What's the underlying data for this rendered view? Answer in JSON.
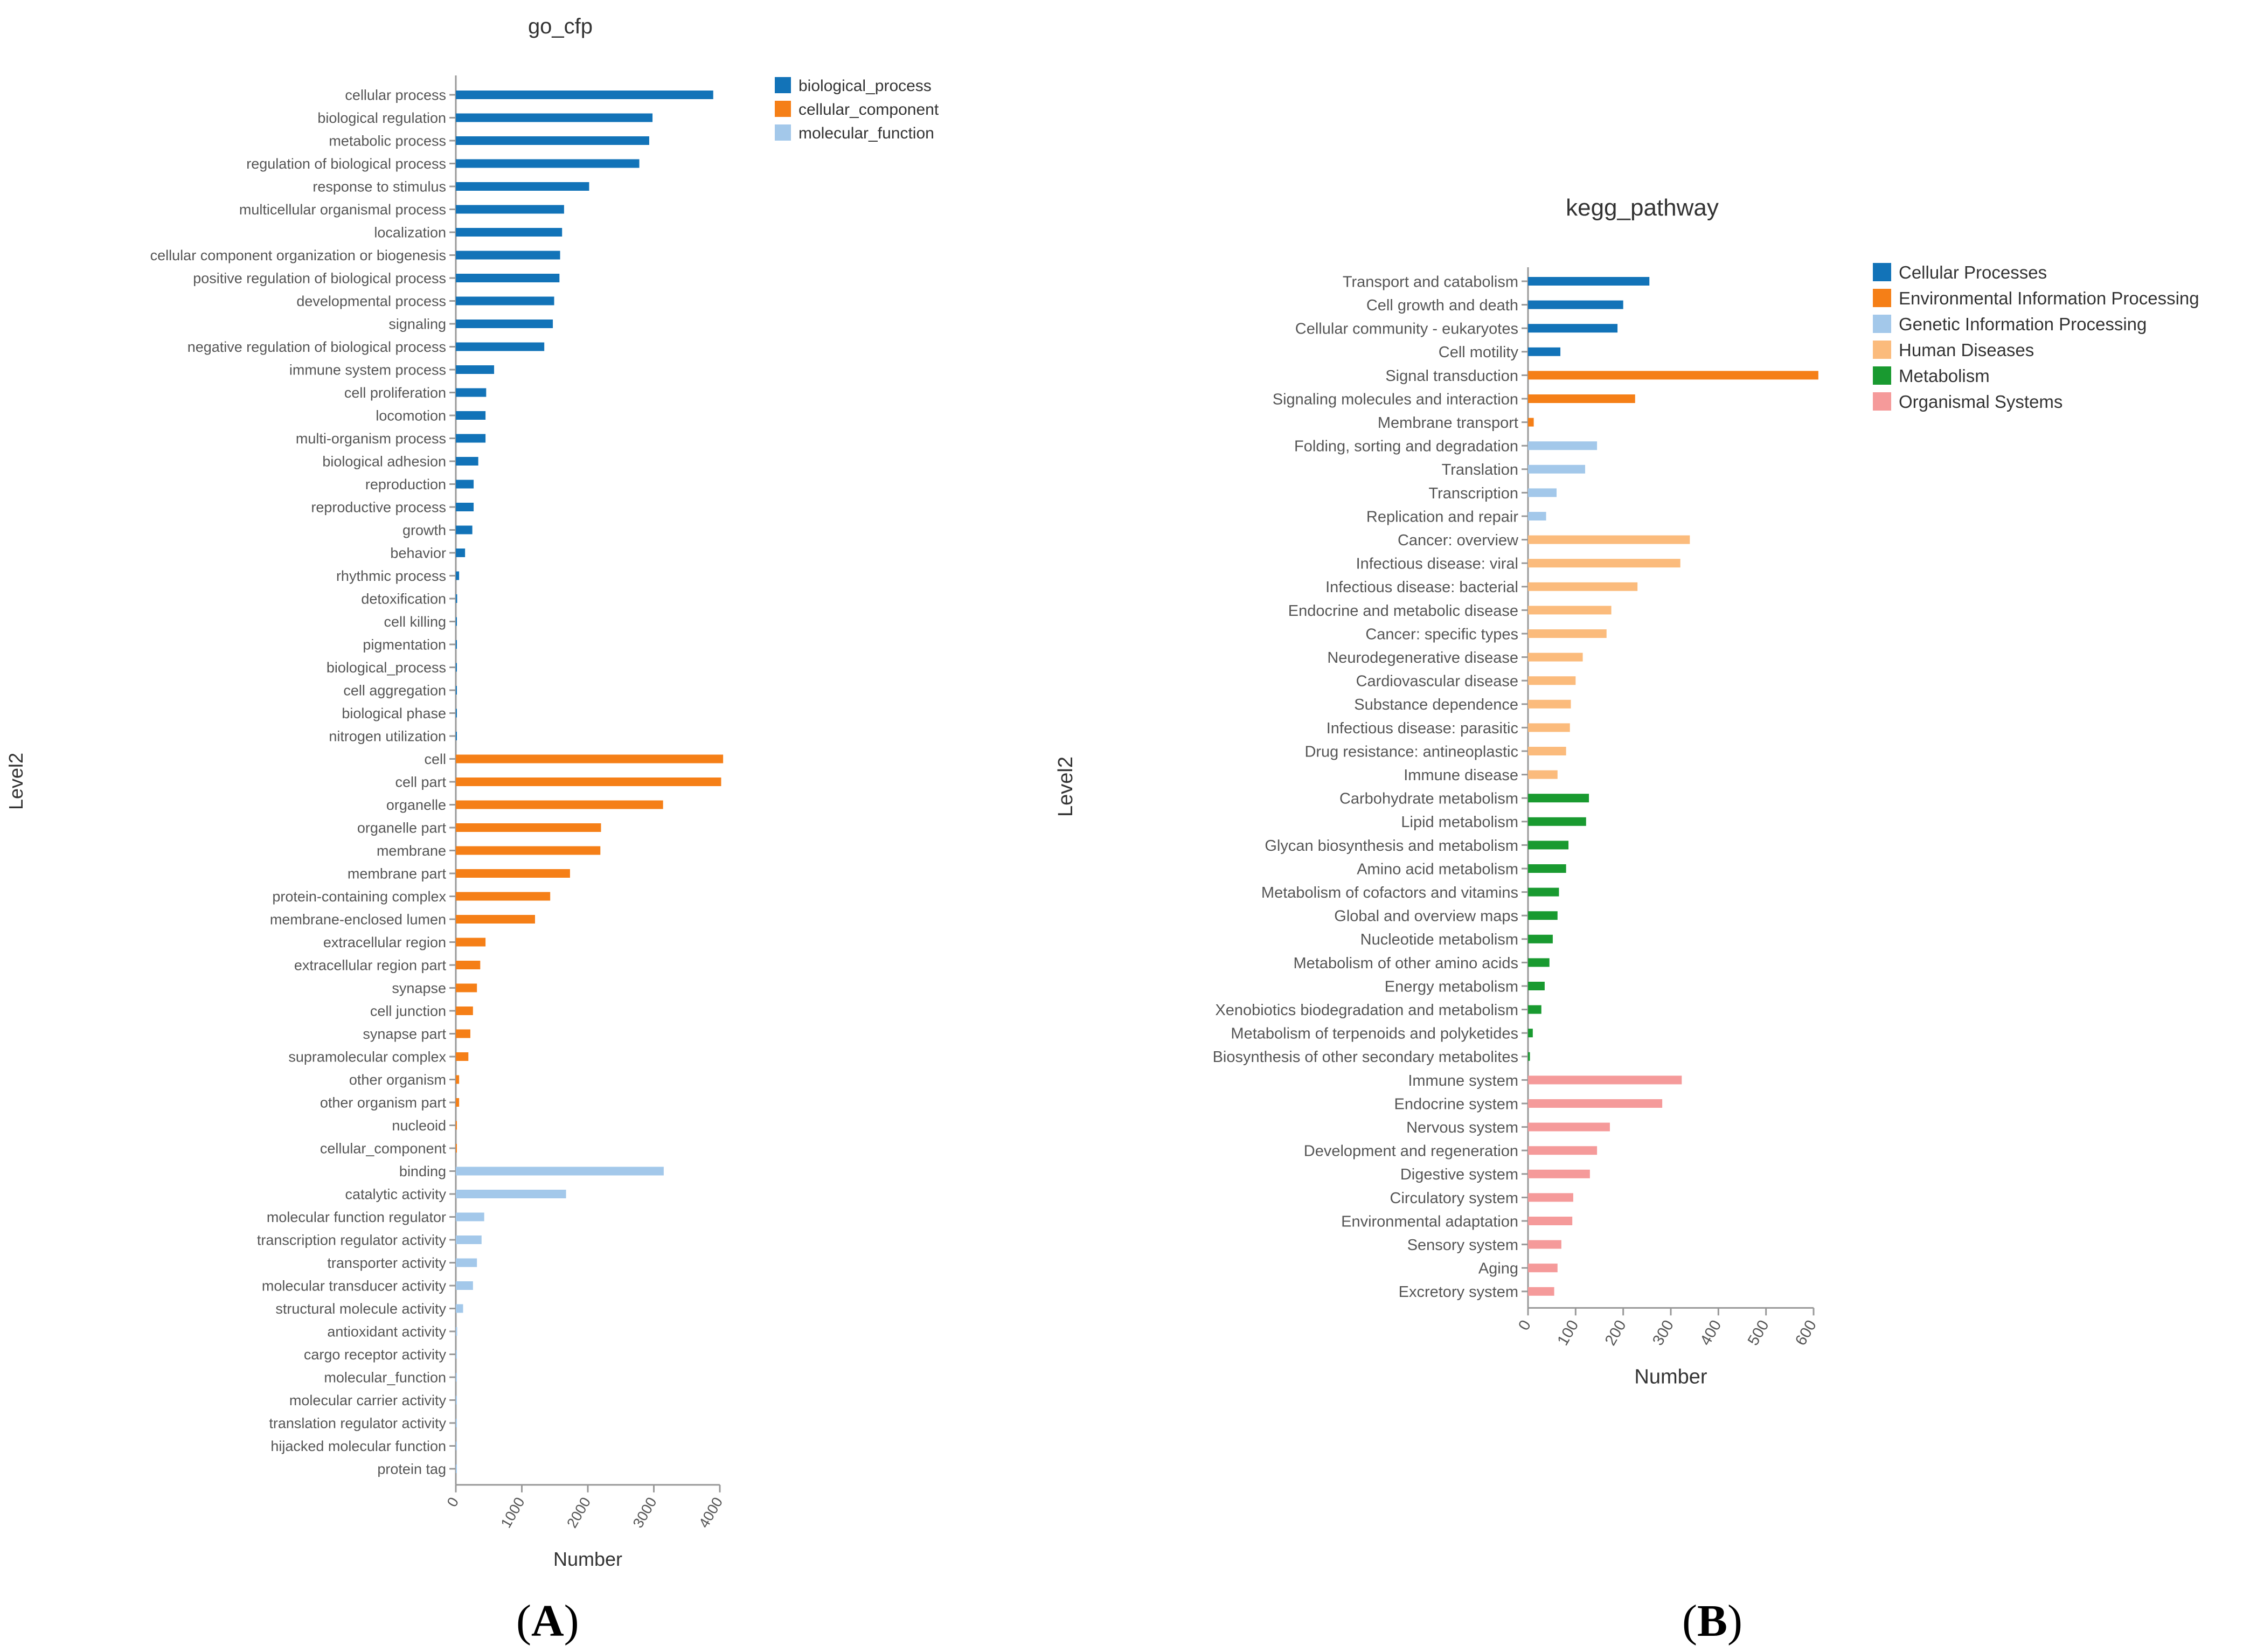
{
  "panels": {
    "a": "A",
    "b": "B"
  },
  "chart_data": [
    {
      "type": "bar",
      "orientation": "horizontal",
      "title": "go_cfp",
      "xlabel": "Number",
      "ylabel": "Level2",
      "xlim": [
        0,
        4000
      ],
      "xticks": [
        0,
        1000,
        2000,
        3000,
        4000
      ],
      "legend_position": "top-right",
      "legend": [
        {
          "name": "biological_process",
          "color": "#1273b8"
        },
        {
          "name": "cellular_component",
          "color": "#f57f17"
        },
        {
          "name": "molecular_function",
          "color": "#a3c8ea"
        }
      ],
      "categories": [
        "cellular process",
        "biological regulation",
        "metabolic process",
        "regulation of biological process",
        "response to stimulus",
        "multicellular organismal process",
        "localization",
        "cellular component organization or biogenesis",
        "positive regulation of biological process",
        "developmental process",
        "signaling",
        "negative regulation of biological process",
        "immune system process",
        "cell proliferation",
        "locomotion",
        "multi-organism process",
        "biological adhesion",
        "reproduction",
        "reproductive process",
        "growth",
        "behavior",
        "rhythmic process",
        "detoxification",
        "cell killing",
        "pigmentation",
        "biological_process",
        "cell aggregation",
        "biological phase",
        "nitrogen utilization",
        "cell",
        "cell part",
        "organelle",
        "organelle part",
        "membrane",
        "membrane part",
        "protein-containing complex",
        "membrane-enclosed lumen",
        "extracellular region",
        "extracellular region part",
        "synapse",
        "cell junction",
        "synapse part",
        "supramolecular complex",
        "other organism",
        "other organism part",
        "nucleoid",
        "cellular_component",
        "binding",
        "catalytic activity",
        "molecular function regulator",
        "transcription regulator activity",
        "transporter activity",
        "molecular transducer activity",
        "structural molecule activity",
        "antioxidant activity",
        "cargo receptor activity",
        "molecular_function",
        "molecular carrier activity",
        "translation regulator activity",
        "hijacked molecular function",
        "protein tag"
      ],
      "values": [
        3900,
        2980,
        2930,
        2780,
        2020,
        1640,
        1610,
        1580,
        1570,
        1490,
        1470,
        1340,
        580,
        460,
        450,
        450,
        340,
        270,
        270,
        250,
        140,
        50,
        20,
        10,
        8,
        5,
        4,
        3,
        2,
        4050,
        4020,
        3140,
        2200,
        2190,
        1730,
        1430,
        1200,
        450,
        370,
        320,
        260,
        220,
        190,
        50,
        50,
        5,
        5,
        3150,
        1670,
        430,
        390,
        320,
        260,
        110,
        20,
        10,
        5,
        3,
        3,
        2,
        1
      ],
      "groups": [
        "biological_process",
        "biological_process",
        "biological_process",
        "biological_process",
        "biological_process",
        "biological_process",
        "biological_process",
        "biological_process",
        "biological_process",
        "biological_process",
        "biological_process",
        "biological_process",
        "biological_process",
        "biological_process",
        "biological_process",
        "biological_process",
        "biological_process",
        "biological_process",
        "biological_process",
        "biological_process",
        "biological_process",
        "biological_process",
        "biological_process",
        "biological_process",
        "biological_process",
        "biological_process",
        "biological_process",
        "biological_process",
        "biological_process",
        "cellular_component",
        "cellular_component",
        "cellular_component",
        "cellular_component",
        "cellular_component",
        "cellular_component",
        "cellular_component",
        "cellular_component",
        "cellular_component",
        "cellular_component",
        "cellular_component",
        "cellular_component",
        "cellular_component",
        "cellular_component",
        "cellular_component",
        "cellular_component",
        "cellular_component",
        "cellular_component",
        "molecular_function",
        "molecular_function",
        "molecular_function",
        "molecular_function",
        "molecular_function",
        "molecular_function",
        "molecular_function",
        "molecular_function",
        "molecular_function",
        "molecular_function",
        "molecular_function",
        "molecular_function",
        "molecular_function",
        "molecular_function"
      ]
    },
    {
      "type": "bar",
      "orientation": "horizontal",
      "title": "kegg_pathway",
      "xlabel": "Number",
      "ylabel": "Level2",
      "xlim": [
        0,
        600
      ],
      "xticks": [
        0,
        100,
        200,
        300,
        400,
        500,
        600
      ],
      "legend_position": "top-right",
      "legend": [
        {
          "name": "Cellular Processes",
          "color": "#1273b8"
        },
        {
          "name": "Environmental Information Processing",
          "color": "#f57f17"
        },
        {
          "name": "Genetic Information Processing",
          "color": "#a3c8ea"
        },
        {
          "name": "Human Diseases",
          "color": "#fbbb7c"
        },
        {
          "name": "Metabolism",
          "color": "#199a30"
        },
        {
          "name": "Organismal Systems",
          "color": "#f59a9a"
        }
      ],
      "categories": [
        "Transport and catabolism",
        "Cell growth and death",
        "Cellular community - eukaryotes",
        "Cell motility",
        "Signal transduction",
        "Signaling molecules and interaction",
        "Membrane transport",
        "Folding, sorting and degradation",
        "Translation",
        "Transcription",
        "Replication and repair",
        "Cancer: overview",
        "Infectious disease: viral",
        "Infectious disease: bacterial",
        "Endocrine and metabolic disease",
        "Cancer: specific types",
        "Neurodegenerative disease",
        "Cardiovascular disease",
        "Substance dependence",
        "Infectious disease: parasitic",
        "Drug resistance: antineoplastic",
        "Immune disease",
        "Carbohydrate metabolism",
        "Lipid metabolism",
        "Glycan biosynthesis and metabolism",
        "Amino acid metabolism",
        "Metabolism of cofactors and vitamins",
        "Global and overview maps",
        "Nucleotide metabolism",
        "Metabolism of other amino acids",
        "Energy metabolism",
        "Xenobiotics biodegradation and metabolism",
        "Metabolism of terpenoids and polyketides",
        "Biosynthesis of other secondary metabolites",
        "Immune system",
        "Endocrine system",
        "Nervous system",
        "Development and regeneration",
        "Digestive system",
        "Circulatory system",
        "Environmental adaptation",
        "Sensory system",
        "Aging",
        "Excretory system"
      ],
      "values": [
        255,
        200,
        188,
        68,
        610,
        225,
        12,
        145,
        120,
        60,
        38,
        340,
        320,
        230,
        175,
        165,
        115,
        100,
        90,
        88,
        80,
        62,
        128,
        122,
        85,
        80,
        65,
        62,
        52,
        45,
        35,
        28,
        10,
        4,
        323,
        282,
        172,
        145,
        130,
        95,
        93,
        70,
        62,
        55
      ],
      "groups": [
        "Cellular Processes",
        "Cellular Processes",
        "Cellular Processes",
        "Cellular Processes",
        "Environmental Information Processing",
        "Environmental Information Processing",
        "Environmental Information Processing",
        "Genetic Information Processing",
        "Genetic Information Processing",
        "Genetic Information Processing",
        "Genetic Information Processing",
        "Human Diseases",
        "Human Diseases",
        "Human Diseases",
        "Human Diseases",
        "Human Diseases",
        "Human Diseases",
        "Human Diseases",
        "Human Diseases",
        "Human Diseases",
        "Human Diseases",
        "Human Diseases",
        "Metabolism",
        "Metabolism",
        "Metabolism",
        "Metabolism",
        "Metabolism",
        "Metabolism",
        "Metabolism",
        "Metabolism",
        "Metabolism",
        "Metabolism",
        "Metabolism",
        "Metabolism",
        "Organismal Systems",
        "Organismal Systems",
        "Organismal Systems",
        "Organismal Systems",
        "Organismal Systems",
        "Organismal Systems",
        "Organismal Systems",
        "Organismal Systems",
        "Organismal Systems",
        "Organismal Systems"
      ]
    }
  ]
}
